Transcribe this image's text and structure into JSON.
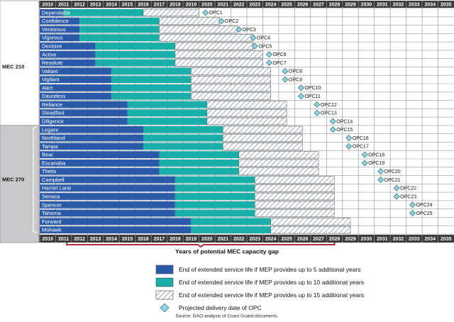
{
  "chart_data": {
    "type": "gantt",
    "xlim": [
      2010,
      2036
    ],
    "xticks": [
      2010,
      2011,
      2012,
      2013,
      2014,
      2015,
      2016,
      2017,
      2018,
      2019,
      2020,
      2021,
      2022,
      2023,
      2024,
      2025,
      2026,
      2027,
      2028,
      2029,
      2030,
      2031,
      2032,
      2033,
      2034,
      2035
    ],
    "groups": [
      {
        "label": "MEC 210",
        "categories": [
          "Dependable",
          "Confidence",
          "Ventorous",
          "Vigorous",
          "Decisive",
          "Active",
          "Resolute",
          "Valiant",
          "Vigilant",
          "Alert",
          "Dauntless",
          "Reliance",
          "Steadfast",
          "Diligence"
        ]
      },
      {
        "label": "MEC 270",
        "categories": [
          "Legare",
          "Northland",
          "Tampa",
          "Bear",
          "Escanaba",
          "Thetis",
          "Campbell",
          "Harriet Lane",
          "Seneca",
          "Spencer",
          "Tahoma",
          "Forward",
          "Mohawk"
        ]
      }
    ],
    "series": [
      {
        "name": "End of extended service life if MEP provides up to 5 additional years",
        "color": "#2b5ba8",
        "values": [
          1.5,
          2.5,
          2.5,
          2.5,
          3.5,
          3.5,
          3.5,
          4.5,
          4.5,
          4.5,
          4.5,
          5.5,
          5.5,
          5.5,
          6.5,
          6.5,
          6.5,
          7.5,
          7.5,
          7.5,
          8.5,
          8.5,
          8.5,
          8.5,
          8.5,
          9.5,
          9.5
        ]
      },
      {
        "name": "End of extended service life if MEP provides up to 10 additional years",
        "color": "#1aaea9",
        "values": [
          5,
          5,
          5,
          5,
          5,
          5,
          5,
          5,
          5,
          5,
          5,
          5,
          5,
          5,
          5,
          5,
          5,
          5,
          5,
          5,
          5,
          5,
          5,
          5,
          5,
          5,
          5
        ]
      },
      {
        "name": "End of extended service life if MEP provides up to 15 additional years",
        "color": "hatch",
        "values": [
          3.5,
          3.8,
          4.9,
          5.9,
          4.9,
          5.5,
          5.5,
          5,
          5,
          5,
          5,
          5,
          5,
          5,
          5,
          5,
          5,
          5,
          5,
          5,
          5,
          5,
          5,
          5,
          5,
          5,
          5
        ]
      }
    ],
    "opc": {
      "name": "Projected delivery date of OPC",
      "color": "#8fd3df",
      "values": [
        2020.4,
        2021.4,
        2022.5,
        2023.4,
        2023.5,
        2024.4,
        2024.4,
        2025.4,
        2025.4,
        2026.4,
        2026.4,
        2027.4,
        2027.4,
        2028.4,
        2028.4,
        2029.4,
        2029.4,
        2030.4,
        2030.4,
        2031.4,
        2031.4,
        2032.4,
        2032.4,
        2033.4,
        2033.4,
        null,
        null
      ],
      "labels": [
        "OPC1",
        "OPC2",
        "OPC3",
        "OPC4",
        "OPC5",
        "OPC6",
        "OPC7",
        "OPC8",
        "OPC9",
        "OPC10",
        "OPC11",
        "OPC12",
        "OPC13",
        "OPC14",
        "OPC15",
        "OPC16",
        "OPC17",
        "OPC18",
        "OPC19",
        "OPC20",
        "OPC21",
        "OPC22",
        "OPC23",
        "OPC24",
        "OPC25",
        null,
        null
      ]
    },
    "annotation": {
      "text": "Years of potential MEC capacity gap",
      "span": [
        2011.7,
        2028.5
      ],
      "color": "#b0283a"
    },
    "source": "Source: GAO analysis of Coast Guard documents."
  }
}
